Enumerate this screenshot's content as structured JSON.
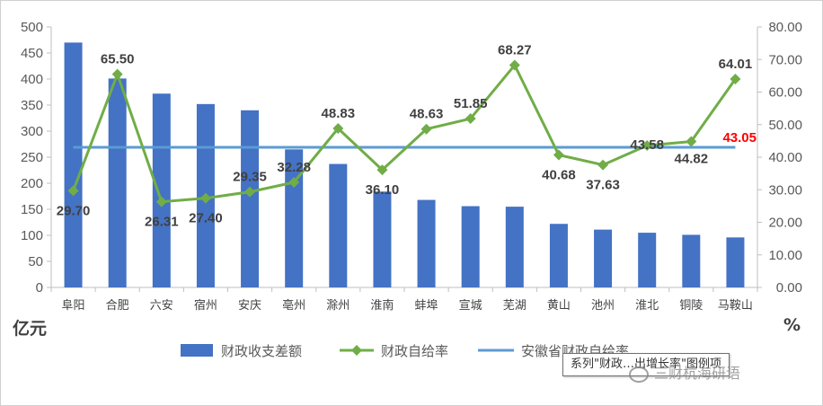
{
  "chart_data": {
    "type": "bar+line",
    "categories": [
      "阜阳",
      "合肥",
      "六安",
      "宿州",
      "安庆",
      "亳州",
      "滁州",
      "淮南",
      "蚌埠",
      "宣城",
      "芜湖",
      "黄山",
      "池州",
      "淮北",
      "铜陵",
      "马鞍山"
    ],
    "series": [
      {
        "name": "财政收支差额",
        "type": "bar",
        "axis": "left",
        "color": "#4472c4",
        "values": [
          470,
          401,
          372,
          352,
          340,
          265,
          237,
          184,
          168,
          156,
          155,
          122,
          111,
          105,
          101,
          96
        ]
      },
      {
        "name": "财政自给率",
        "type": "line",
        "axis": "right",
        "color": "#70ad47",
        "values": [
          29.7,
          65.5,
          26.31,
          27.4,
          29.35,
          32.28,
          48.83,
          36.1,
          48.63,
          51.85,
          68.27,
          40.68,
          37.63,
          43.58,
          44.82,
          64.01
        ],
        "labels": [
          "29.70",
          "65.50",
          "26.31",
          "27.40",
          "29.35",
          "32.28",
          "48.83",
          "36.10",
          "48.63",
          "51.85",
          "68.27",
          "40.68",
          "37.63",
          "43.58",
          "44.82",
          "64.01"
        ]
      },
      {
        "name": "安徽省财政自给率",
        "type": "hline",
        "axis": "right",
        "color": "#5b9bd5",
        "value": 43.05,
        "label": "43.05",
        "label_color": "#ff0000"
      }
    ],
    "y_left": {
      "ylim": [
        0,
        500
      ],
      "ticks": [
        "0",
        "50",
        "100",
        "150",
        "200",
        "250",
        "300",
        "350",
        "400",
        "450",
        "500"
      ],
      "unit": "亿元"
    },
    "y_right": {
      "ylim": [
        0,
        80
      ],
      "ticks": [
        "0.00",
        "10.00",
        "20.00",
        "30.00",
        "40.00",
        "50.00",
        "60.00",
        "70.00",
        "80.00"
      ],
      "unit": "%"
    },
    "grid": false,
    "legend_position": "bottom"
  },
  "legend": {
    "bar_label": "财政收支差额",
    "line_label": "财政自给率",
    "hline_label": "安徽省财政自给率"
  },
  "tooltip": {
    "text": "系列\"财政…出增长率\"图例项"
  },
  "watermark": {
    "text": "三财杭海研语"
  }
}
